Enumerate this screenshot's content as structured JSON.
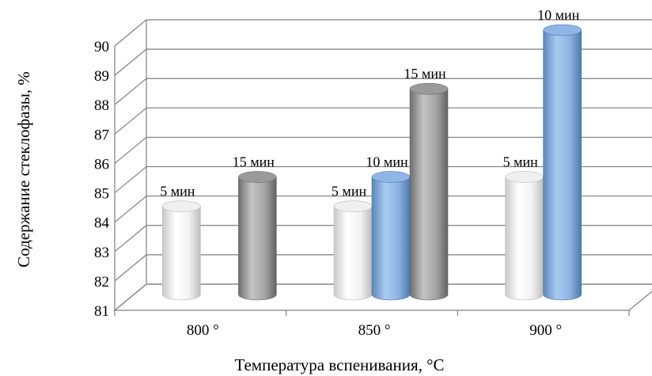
{
  "chart_data": {
    "type": "bar",
    "style": "3d-cylinder",
    "xlabel": "Температура вспенивания, °C",
    "ylabel": "Содержание стеклофазы, %",
    "ylim": [
      81,
      90
    ],
    "yticks": [
      "81",
      "82",
      "83",
      "84",
      "85",
      "86",
      "87",
      "88",
      "89",
      "90"
    ],
    "grid": true,
    "legend": "none",
    "categories": [
      "800 °",
      "850 °",
      "900 °"
    ],
    "bars": [
      {
        "category": 0,
        "slot": 0,
        "value": 84,
        "label": "5 мин",
        "color": "#ffffff"
      },
      {
        "category": 0,
        "slot": 2,
        "value": 85,
        "label": "15 мин",
        "color": "#a6a6a6"
      },
      {
        "category": 1,
        "slot": 0,
        "value": 84,
        "label": "5 мин",
        "color": "#ffffff"
      },
      {
        "category": 1,
        "slot": 1,
        "value": 85,
        "label": "10 мин",
        "color": "#8db4e2"
      },
      {
        "category": 1,
        "slot": 2,
        "value": 88,
        "label": "15 мин",
        "color": "#a6a6a6"
      },
      {
        "category": 2,
        "slot": 0,
        "value": 85,
        "label": "5 мин",
        "color": "#ffffff"
      },
      {
        "category": 2,
        "slot": 1,
        "value": 90,
        "label": "10 мин",
        "color": "#8db4e2"
      }
    ]
  }
}
